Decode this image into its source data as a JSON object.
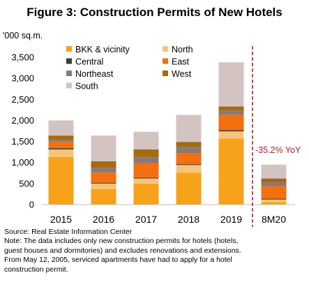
{
  "chart_data": {
    "type": "bar",
    "stacked": true,
    "title": "Figure 3: Construction Permits of New Hotels",
    "ylabel": "'000 sq.m.",
    "ylim": [
      0,
      3500
    ],
    "yticks": [
      "0",
      "500",
      "1,000",
      "1,500",
      "2,000",
      "2,500",
      "3,000",
      "3,500"
    ],
    "ytick_values": [
      0,
      500,
      1000,
      1500,
      2000,
      2500,
      3000,
      3500
    ],
    "grid": false,
    "legend_position": "top-left",
    "categories": [
      "2015",
      "2016",
      "2017",
      "2018",
      "2019",
      "8M20"
    ],
    "series": [
      {
        "name": "BKK & vicinity",
        "color": "#f7a21b",
        "values": [
          1130,
          370,
          490,
          760,
          1570,
          60
        ]
      },
      {
        "name": "North",
        "color": "#f9c479",
        "values": [
          180,
          130,
          130,
          180,
          170,
          60
        ]
      },
      {
        "name": "Central",
        "color": "#3d3d3d",
        "values": [
          30,
          20,
          20,
          20,
          30,
          20
        ]
      },
      {
        "name": "East",
        "color": "#f46f0f",
        "values": [
          150,
          240,
          340,
          260,
          360,
          300
        ]
      },
      {
        "name": "Northeast",
        "color": "#8c7a72",
        "values": [
          50,
          120,
          150,
          150,
          110,
          90
        ]
      },
      {
        "name": "West",
        "color": "#a66a10",
        "values": [
          100,
          150,
          180,
          120,
          90,
          90
        ]
      },
      {
        "name": "South",
        "color": "#d3c4c1",
        "values": [
          360,
          610,
          420,
          640,
          1050,
          330
        ]
      }
    ],
    "annotation": {
      "text": "-35.2% YoY",
      "color": "#a3242a"
    },
    "divider_color": "#a3242a"
  },
  "footer": {
    "source": "Source: Real Estate Information Center",
    "note_lines": [
      "Note: The data includes only new construction permits for hotels (hotels,",
      "guest houses and dormitories) and excludes renovations and extensions.",
      "From May 12, 2005, serviced apartments have had to apply for a hotel",
      "construction permit."
    ]
  }
}
